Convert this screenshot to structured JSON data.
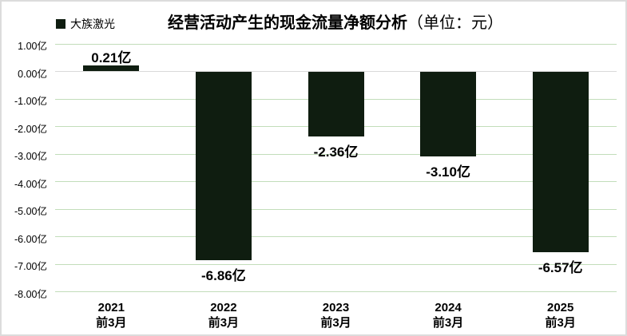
{
  "header": {
    "legend": {
      "label": "大族激光",
      "swatch_color": "#0f1d10"
    },
    "title": {
      "main": "经营活动产生的现金流量净额分析",
      "unit_suffix": "（单位：元）"
    }
  },
  "chart_data": {
    "type": "bar",
    "title": "经营活动产生的现金流量净额分析（单位：元）",
    "series_name": "大族激光",
    "unit": "亿",
    "categories": [
      "2021\n前3月",
      "2022\n前3月",
      "2023\n前3月",
      "2024\n前3月",
      "2025\n前3月"
    ],
    "values": [
      0.21,
      -6.86,
      -2.36,
      -3.1,
      -6.57
    ],
    "value_labels": [
      "0.21亿",
      "-6.86亿",
      "-2.36亿",
      "-3.10亿",
      "-6.57亿"
    ],
    "ylim": [
      -8,
      1
    ],
    "ytick_step": 1,
    "ytick_labels": [
      "1.00亿",
      "0.00亿",
      "-1.00亿",
      "-2.00亿",
      "-3.00亿",
      "-4.00亿",
      "-5.00亿",
      "-6.00亿",
      "-7.00亿",
      "-8.00亿"
    ],
    "grid": true,
    "legend_position": "top-left",
    "colors": {
      "bar": "#0f1d10",
      "gridline": "#c2ddba",
      "zero_line": "#d9d9d9",
      "text": "#000000"
    }
  }
}
